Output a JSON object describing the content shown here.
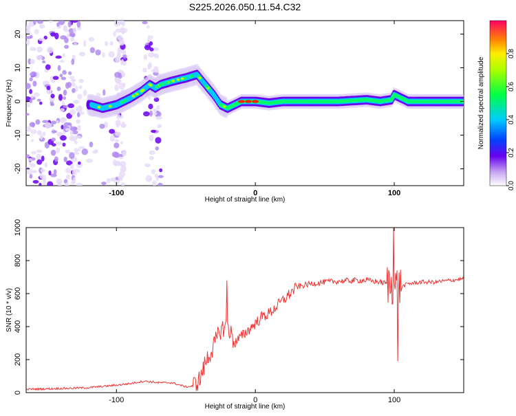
{
  "chart_data": [
    {
      "type": "heatmap",
      "title": "S225.2026.050.11.54.C32",
      "xlabel": "Height of straight line (km)",
      "ylabel": "Frequency (Hz)",
      "xlim": [
        -165,
        150
      ],
      "ylim": [
        -25,
        24
      ],
      "x_ticks": [
        -100,
        0,
        100
      ],
      "y_ticks": [
        -20,
        -10,
        0,
        10,
        20
      ],
      "x_tick_labels": [
        "-100",
        "0",
        "100"
      ],
      "y_tick_labels": [
        "-20",
        "-10",
        "0",
        "10",
        "20"
      ],
      "ridge": {
        "x": [
          -118,
          -110,
          -100,
          -90,
          -82,
          -76,
          -72,
          -68,
          -60,
          -50,
          -42,
          -36,
          -30,
          -25,
          -20,
          -15,
          -10,
          -5,
          0,
          10,
          20,
          40,
          60,
          80,
          90,
          98,
          100,
          110,
          130,
          150
        ],
        "freq": [
          -1,
          -2,
          -1,
          1,
          3,
          5,
          4,
          5,
          6,
          7,
          8,
          5,
          2,
          -1,
          -2,
          -1,
          0,
          0,
          0,
          -0.5,
          0,
          0,
          0,
          0.5,
          0,
          0.5,
          2,
          0,
          0,
          0
        ]
      },
      "colorbar": {
        "label": "Normalized spectral amplitude",
        "range": [
          0.0,
          1.0
        ],
        "ticks": [
          0.0,
          0.2,
          0.4,
          0.6,
          0.8
        ],
        "tick_labels": [
          "0.0",
          "0.2",
          "0.4",
          "0.6",
          "0.8"
        ]
      }
    },
    {
      "type": "line",
      "xlabel": "Height of straight line (km)",
      "ylabel": "SNR (10 * v/v)",
      "xlim": [
        -165,
        150
      ],
      "ylim": [
        0,
        1000
      ],
      "x_ticks": [
        -100,
        0,
        100
      ],
      "y_ticks": [
        0,
        200,
        400,
        600,
        800,
        1000
      ],
      "x_tick_labels": [
        "-100",
        "0",
        "100"
      ],
      "y_tick_labels": [
        "0",
        "200",
        "400",
        "600",
        "800",
        "1000"
      ],
      "color": "#ee3333",
      "series": [
        {
          "name": "SNR",
          "x": [
            -165,
            -140,
            -120,
            -100,
            -90,
            -80,
            -70,
            -60,
            -50,
            -45,
            -40,
            -35,
            -30,
            -25,
            -20,
            -15,
            -10,
            -5,
            0,
            5,
            10,
            15,
            20,
            25,
            30,
            40,
            50,
            60,
            70,
            80,
            90,
            95,
            100,
            105,
            110,
            120,
            130,
            140,
            150
          ],
          "values": [
            20,
            25,
            30,
            45,
            55,
            70,
            60,
            60,
            35,
            40,
            80,
            200,
            280,
            380,
            410,
            300,
            340,
            380,
            420,
            460,
            480,
            520,
            560,
            600,
            640,
            660,
            670,
            675,
            680,
            680,
            670,
            660,
            650,
            640,
            660,
            670,
            670,
            680,
            690
          ]
        }
      ]
    }
  ]
}
